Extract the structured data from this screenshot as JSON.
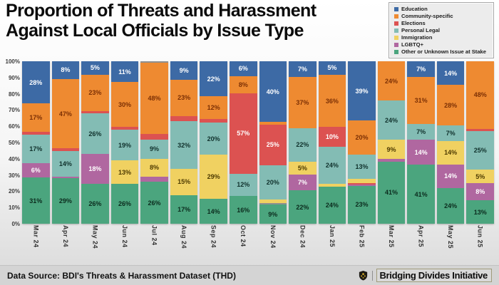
{
  "title": {
    "line1": "Proportion of Threats and Harassment",
    "line2": "Against Local Officials by Issue Type"
  },
  "legend": {
    "items": [
      {
        "label": "Education",
        "color": "#3d6aa5"
      },
      {
        "label": "Community-specific",
        "color": "#ee8a31"
      },
      {
        "label": "Elections",
        "color": "#dc5251"
      },
      {
        "label": "Personal Legal",
        "color": "#83bcb4"
      },
      {
        "label": "Immigration",
        "color": "#f0d161"
      },
      {
        "label": "LGBTQ+",
        "color": "#b067a0"
      },
      {
        "label": "Other or Unknown Issue at Stake",
        "color": "#4ba57e"
      }
    ]
  },
  "footer": {
    "source": "Data Source: BDI's Threats & Harassment Dataset (THD)",
    "brand": "Bridging Divides Initiative",
    "logo": "bdi-shield-icon"
  },
  "chart_data": {
    "type": "bar",
    "stacked": true,
    "unit": "percent",
    "title": "Proportion of Threats and Harassment Against Local Officials by Issue Type",
    "ylim": [
      0,
      100
    ],
    "grid": false,
    "legend_position": "top-right",
    "yticks": [
      "100%",
      "90%",
      "80%",
      "70%",
      "60%",
      "50%",
      "40%",
      "30%",
      "20%",
      "10%",
      "0%"
    ],
    "categories": [
      "Mar 24",
      "Apr 24",
      "May 24",
      "Jun 24",
      "Jul 24",
      "Aug 24",
      "Sep 24",
      "Oct 24",
      "Nov 24",
      "Dec 24",
      "Jan 25",
      "Feb 25",
      "Mar 25",
      "Apr 25",
      "May 25",
      "Jun 25"
    ],
    "colors": {
      "Education": "#3d6aa5",
      "Community-specific": "#ee8a31",
      "Elections": "#dc5251",
      "Personal Legal": "#83bcb4",
      "Immigration": "#f0d161",
      "LGBTQ+": "#b067a0",
      "Other or Unknown Issue at Stake": "#4ba57e",
      "Unlabeled": "#909090"
    },
    "label_colors": {
      "Education": "#ffffff",
      "Community-specific": "#7b2f04",
      "Elections": "#ffffff",
      "Personal Legal": "#10312c",
      "Immigration": "#4d3a00",
      "LGBTQ+": "#ffffff",
      "Other or Unknown Issue at Stake": "#0b2b1d",
      "Unlabeled": "#ffffff"
    },
    "segment_order": "bottom-to-top",
    "bars": [
      {
        "category": "Mar 24",
        "segments": [
          {
            "issue": "Other or Unknown Issue at Stake",
            "value": 31,
            "label": "31%"
          },
          {
            "issue": "LGBTQ+",
            "value": 6,
            "label": "6%"
          },
          {
            "issue": "Personal Legal",
            "value": 17,
            "label": "17%"
          },
          {
            "issue": "Elections",
            "value": 2,
            "label": ""
          },
          {
            "issue": "Community-specific",
            "value": 17,
            "label": "17%"
          },
          {
            "issue": "Education",
            "value": 28,
            "label": "28%"
          }
        ]
      },
      {
        "category": "Apr 24",
        "segments": [
          {
            "issue": "Other or Unknown Issue at Stake",
            "value": 29,
            "label": "29%"
          },
          {
            "issue": "LGBTQ+",
            "value": 1,
            "label": ""
          },
          {
            "issue": "Personal Legal",
            "value": 14,
            "label": "14%"
          },
          {
            "issue": "Elections",
            "value": 2,
            "label": ""
          },
          {
            "issue": "Community-specific",
            "value": 47,
            "label": "47%"
          },
          {
            "issue": "Education",
            "value": 8,
            "label": "8%"
          }
        ]
      },
      {
        "category": "May 24",
        "segments": [
          {
            "issue": "Other or Unknown Issue at Stake",
            "value": 26,
            "label": "26%"
          },
          {
            "issue": "LGBTQ+",
            "value": 18,
            "label": "18%"
          },
          {
            "issue": "Personal Legal",
            "value": 26,
            "label": "26%"
          },
          {
            "issue": "Elections",
            "value": 2,
            "label": ""
          },
          {
            "issue": "Community-specific",
            "value": 23,
            "label": "23%"
          },
          {
            "issue": "Education",
            "value": 5,
            "label": "5%"
          }
        ]
      },
      {
        "category": "Jun 24",
        "segments": [
          {
            "issue": "Other or Unknown Issue at Stake",
            "value": 26,
            "label": "26%"
          },
          {
            "issue": "Immigration",
            "value": 13,
            "label": "13%"
          },
          {
            "issue": "Personal Legal",
            "value": 19,
            "label": "19%"
          },
          {
            "issue": "Elections",
            "value": 2,
            "label": ""
          },
          {
            "issue": "Community-specific",
            "value": 30,
            "label": "30%"
          },
          {
            "issue": "Education",
            "value": 11,
            "label": "11%"
          }
        ]
      },
      {
        "category": "Jul 24",
        "segments": [
          {
            "issue": "Other or Unknown Issue at Stake",
            "value": 26,
            "label": "26%"
          },
          {
            "issue": "LGBTQ+",
            "value": 4,
            "label": ""
          },
          {
            "issue": "Immigration",
            "value": 8,
            "label": "8%"
          },
          {
            "issue": "Personal Legal",
            "value": 9,
            "label": "9%"
          },
          {
            "issue": "Elections",
            "value": 4,
            "label": ""
          },
          {
            "issue": "Community-specific",
            "value": 48,
            "label": "48%"
          },
          {
            "issue": "Unlabeled",
            "value": 1,
            "label": ""
          }
        ]
      },
      {
        "category": "Aug 24",
        "segments": [
          {
            "issue": "Other or Unknown Issue at Stake",
            "value": 17,
            "label": "17%"
          },
          {
            "issue": "Immigration",
            "value": 15,
            "label": "15%"
          },
          {
            "issue": "Personal Legal",
            "value": 32,
            "label": "32%"
          },
          {
            "issue": "Elections",
            "value": 4,
            "label": ""
          },
          {
            "issue": "Community-specific",
            "value": 23,
            "label": "23%"
          },
          {
            "issue": "Education",
            "value": 9,
            "label": "9%"
          }
        ]
      },
      {
        "category": "Sep 24",
        "segments": [
          {
            "issue": "Other or Unknown Issue at Stake",
            "value": 14,
            "label": "14%"
          },
          {
            "issue": "Immigration",
            "value": 29,
            "label": "29%"
          },
          {
            "issue": "Personal Legal",
            "value": 20,
            "label": "20%"
          },
          {
            "issue": "Elections",
            "value": 3,
            "label": ""
          },
          {
            "issue": "Community-specific",
            "value": 12,
            "label": "12%"
          },
          {
            "issue": "Education",
            "value": 22,
            "label": "22%"
          }
        ]
      },
      {
        "category": "Oct 24",
        "segments": [
          {
            "issue": "Other or Unknown Issue at Stake",
            "value": 16,
            "label": "16%"
          },
          {
            "issue": "Personal Legal",
            "value": 12,
            "label": "12%"
          },
          {
            "issue": "Elections",
            "value": 57,
            "label": "57%"
          },
          {
            "issue": "Community-specific",
            "value": 8,
            "label": "8%"
          },
          {
            "issue": "Education",
            "value": 6,
            "label": "6%"
          }
        ]
      },
      {
        "category": "Nov 24",
        "segments": [
          {
            "issue": "Other or Unknown Issue at Stake",
            "value": 9,
            "label": "9%"
          },
          {
            "issue": "Unlabeled",
            "value": 1,
            "label": ""
          },
          {
            "issue": "Immigration",
            "value": 3,
            "label": ""
          },
          {
            "issue": "Personal Legal",
            "value": 20,
            "label": "20%"
          },
          {
            "issue": "Elections",
            "value": 25,
            "label": "25%"
          },
          {
            "issue": "Community-specific",
            "value": 2,
            "label": ""
          },
          {
            "issue": "Education",
            "value": 40,
            "label": "40%"
          }
        ]
      },
      {
        "category": "Dec 24",
        "segments": [
          {
            "issue": "Other or Unknown Issue at Stake",
            "value": 22,
            "label": "22%"
          },
          {
            "issue": "LGBTQ+",
            "value": 7,
            "label": "7%"
          },
          {
            "issue": "Immigration",
            "value": 5,
            "label": "5%"
          },
          {
            "issue": "Personal Legal",
            "value": 22,
            "label": "22%"
          },
          {
            "issue": "Community-specific",
            "value": 37,
            "label": "37%"
          },
          {
            "issue": "Education",
            "value": 7,
            "label": "7%"
          }
        ]
      },
      {
        "category": "Jan 25",
        "segments": [
          {
            "issue": "Other or Unknown Issue at Stake",
            "value": 24,
            "label": "24%"
          },
          {
            "issue": "Immigration",
            "value": 2,
            "label": ""
          },
          {
            "issue": "Personal Legal",
            "value": 24,
            "label": "24%"
          },
          {
            "issue": "Elections",
            "value": 10,
            "label": "10%"
          },
          {
            "issue": "Community-specific",
            "value": 36,
            "label": "36%"
          },
          {
            "issue": "Education",
            "value": 5,
            "label": "5%"
          }
        ]
      },
      {
        "category": "Feb 25",
        "segments": [
          {
            "issue": "Other or Unknown Issue at Stake",
            "value": 23,
            "label": "23%"
          },
          {
            "issue": "LGBTQ+",
            "value": 1,
            "label": ""
          },
          {
            "issue": "Elections",
            "value": 1,
            "label": ""
          },
          {
            "issue": "Immigration",
            "value": 3,
            "label": ""
          },
          {
            "issue": "Personal Legal",
            "value": 13,
            "label": "13%"
          },
          {
            "issue": "Community-specific",
            "value": 20,
            "label": "20%"
          },
          {
            "issue": "Education",
            "value": 39,
            "label": "39%"
          }
        ]
      },
      {
        "category": "Mar 25",
        "segments": [
          {
            "issue": "Other or Unknown Issue at Stake",
            "value": 41,
            "label": "41%"
          },
          {
            "issue": "LGBTQ+",
            "value": 2,
            "label": ""
          },
          {
            "issue": "Immigration",
            "value": 9,
            "label": "9%"
          },
          {
            "issue": "Personal Legal",
            "value": 24,
            "label": "24%"
          },
          {
            "issue": "Community-specific",
            "value": 24,
            "label": "24%"
          }
        ]
      },
      {
        "category": "Apr 25",
        "segments": [
          {
            "issue": "Other or Unknown Issue at Stake",
            "value": 41,
            "label": "41%"
          },
          {
            "issue": "LGBTQ+",
            "value": 14,
            "label": "14%"
          },
          {
            "issue": "Personal Legal",
            "value": 7,
            "label": "7%"
          },
          {
            "issue": "Community-specific",
            "value": 31,
            "label": "31%"
          },
          {
            "issue": "Education",
            "value": 7,
            "label": "7%"
          }
        ]
      },
      {
        "category": "May 25",
        "segments": [
          {
            "issue": "Other or Unknown Issue at Stake",
            "value": 24,
            "label": "24%"
          },
          {
            "issue": "LGBTQ+",
            "value": 14,
            "label": "14%"
          },
          {
            "issue": "Immigration",
            "value": 14,
            "label": "14%"
          },
          {
            "issue": "Personal Legal",
            "value": 7,
            "label": "7%"
          },
          {
            "issue": "Community-specific",
            "value": 28,
            "label": "28%"
          },
          {
            "issue": "Education",
            "value": 14,
            "label": "14%"
          }
        ]
      },
      {
        "category": "Jun 25",
        "segments": [
          {
            "issue": "Other or Unknown Issue at Stake",
            "value": 13,
            "label": "13%"
          },
          {
            "issue": "LGBTQ+",
            "value": 8,
            "label": "8%"
          },
          {
            "issue": "Immigration",
            "value": 5,
            "label": "5%"
          },
          {
            "issue": "Personal Legal",
            "value": 25,
            "label": "25%"
          },
          {
            "issue": "Elections",
            "value": 2,
            "label": ""
          },
          {
            "issue": "Community-specific",
            "value": 48,
            "label": "48%"
          }
        ]
      }
    ]
  }
}
